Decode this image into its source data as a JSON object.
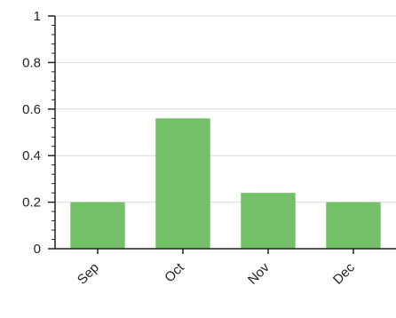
{
  "chart_data": {
    "type": "bar",
    "categories": [
      "Sep",
      "Oct",
      "Nov",
      "Dec"
    ],
    "values": [
      0.2,
      0.56,
      0.24,
      0.2
    ],
    "ylim": [
      0,
      1
    ],
    "y_ticks": [
      "0",
      "0.2",
      "0.4",
      "0.6",
      "0.8",
      "1"
    ],
    "grid": true,
    "bar_color": "#74c069",
    "grid_color": "#d9d9d9",
    "axis_color": "#222222",
    "title": "",
    "xlabel": "",
    "ylabel": ""
  }
}
